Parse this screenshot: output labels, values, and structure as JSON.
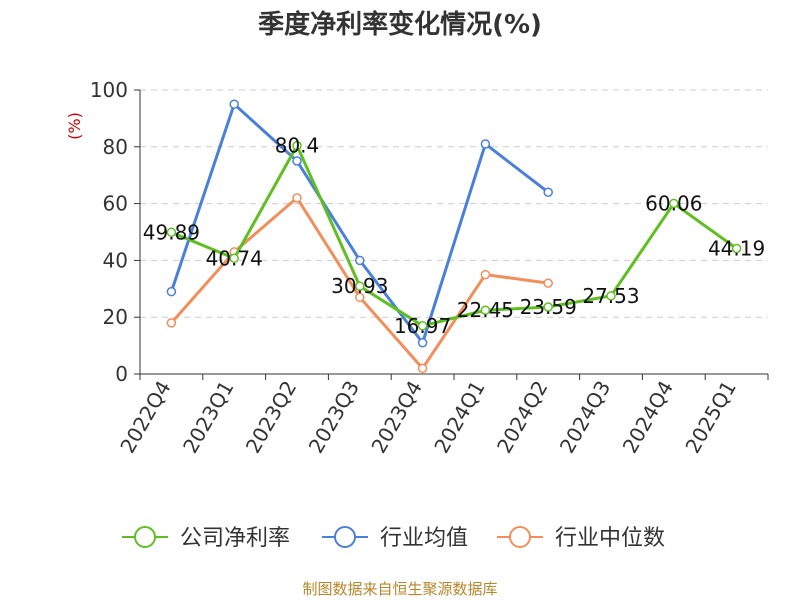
{
  "title": "季度净利率变化情况(%)",
  "source": "制图数据来自恒生聚源数据库",
  "colors": {
    "company": "#5fbf21",
    "industry_avg": "#4a7fdb",
    "industry_median": "#f38e5b",
    "grid": "#cccccc",
    "axis": "#333333",
    "ylabel": "#cc0000"
  },
  "chart_data": {
    "type": "line",
    "title": "季度净利率变化情况(%)",
    "ylabel": "(%)",
    "xlabel": "",
    "ylim": [
      0,
      100
    ],
    "yticks": [
      0,
      20,
      40,
      60,
      80,
      100
    ],
    "grid": true,
    "legend_position": "bottom",
    "categories": [
      "2022Q4",
      "2023Q1",
      "2023Q2",
      "2023Q3",
      "2023Q4",
      "2024Q1",
      "2024Q2",
      "2024Q3",
      "2024Q4",
      "2025Q1"
    ],
    "series": [
      {
        "name": "公司净利率",
        "color": "#5fbf21",
        "values": [
          49.89,
          40.74,
          80.4,
          30.93,
          16.97,
          22.45,
          23.59,
          27.53,
          60.06,
          44.19
        ],
        "data_labels": [
          "49.89",
          "40.74",
          "80.4",
          "30.93",
          "16.97",
          "22.45",
          "23.59",
          "27.53",
          "60.06",
          "44.19"
        ]
      },
      {
        "name": "行业均值",
        "color": "#4a7fdb",
        "values": [
          29,
          95,
          75,
          40,
          11,
          81,
          64,
          null,
          null,
          null
        ]
      },
      {
        "name": "行业中位数",
        "color": "#f38e5b",
        "values": [
          18,
          43,
          62,
          27,
          2,
          35,
          32,
          null,
          null,
          null
        ]
      }
    ]
  }
}
